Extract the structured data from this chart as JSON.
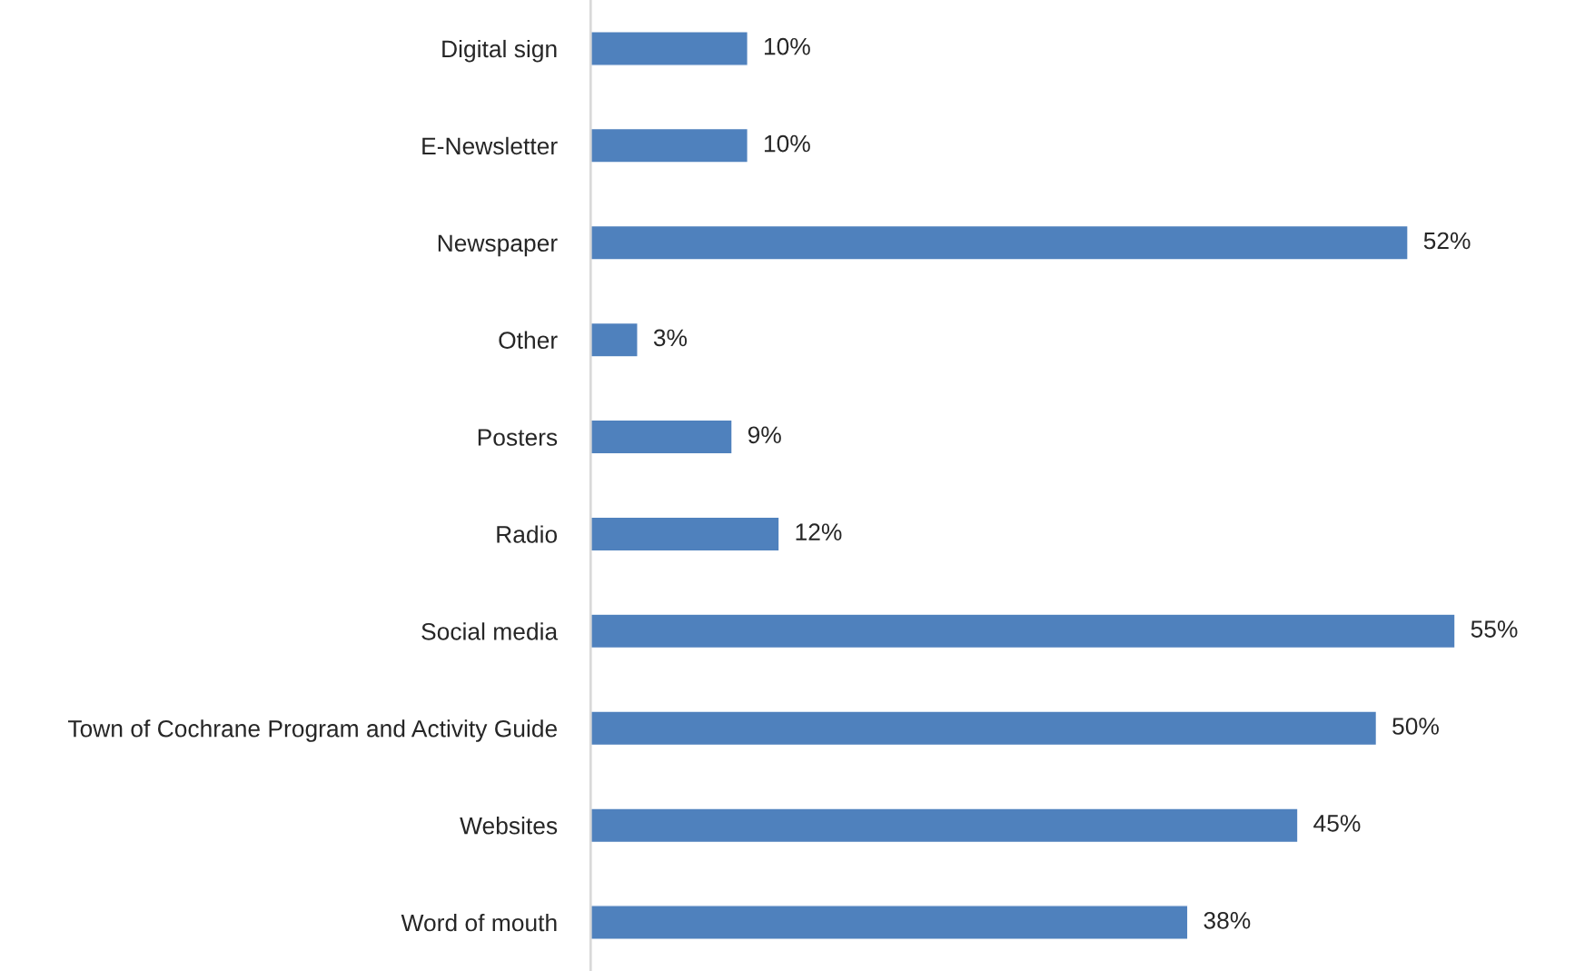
{
  "chart_data": {
    "type": "bar",
    "orientation": "horizontal",
    "categories": [
      "Digital sign",
      "E-Newsletter",
      "Newspaper",
      "Other",
      "Posters",
      "Radio",
      "Social media",
      "Town of Cochrane Program and Activity Guide",
      "Websites",
      "Word of mouth"
    ],
    "values": [
      10,
      10,
      52,
      3,
      9,
      12,
      55,
      50,
      45,
      38
    ],
    "value_labels": [
      "10%",
      "10%",
      "52%",
      "3%",
      "9%",
      "12%",
      "55%",
      "50%",
      "45%",
      "38%"
    ],
    "color": "#4f81bd",
    "tick_labels": "y"
  }
}
